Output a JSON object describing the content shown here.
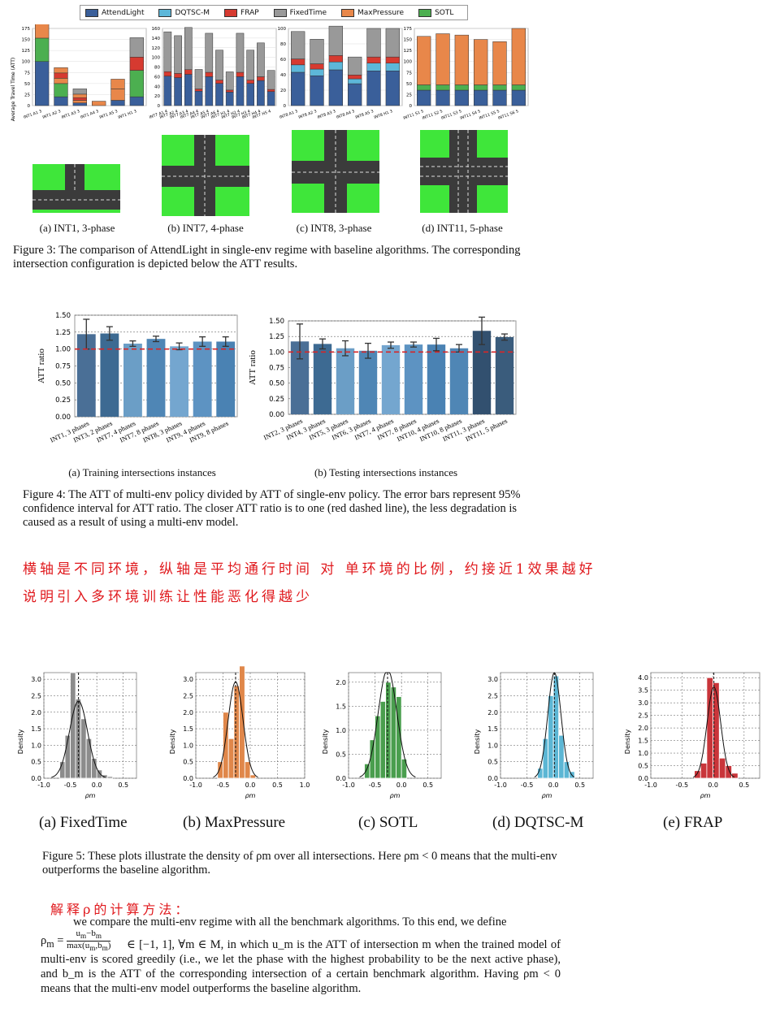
{
  "legend": [
    {
      "label": "AttendLight",
      "color": "#3a5f9a"
    },
    {
      "label": "DQTSC-M",
      "color": "#5db7d9"
    },
    {
      "label": "FRAP",
      "color": "#d63a30"
    },
    {
      "label": "FixedTime",
      "color": "#999999"
    },
    {
      "label": "MaxPressure",
      "color": "#e8874a"
    },
    {
      "label": "SOTL",
      "color": "#4caf50"
    }
  ],
  "fig3": {
    "ylabel": "Average Travel Time (ATT)",
    "subcaptions": [
      "(a) INT1, 3-phase",
      "(b) INT7, 4-phase",
      "(c) INT8, 3-phase",
      "(d) INT11, 5-phase"
    ],
    "caption": "Figure 3: The comparison of AttendLight in single-env regime with baseline algorithms. The corresponding intersection configuration is depicted below the ATT results."
  },
  "fig4": {
    "subcaptions": [
      "(a) Training intersections instances",
      "(b) Testing intersections instances"
    ],
    "caption": "Figure 4: The ATT of multi-env policy divided by ATT of single-env policy. The error bars represent 95% confidence interval for ATT ratio. The closer ATT ratio is to one (red dashed line), the less degradation is caused as a result of using a multi-env model."
  },
  "note1": "横轴是不同环境，纵轴是平均通行时间 对 单环境的比例，约接近1效果越好",
  "note2": "说明引入多环境训练让性能恶化得越少",
  "fig5": {
    "subcaptions": [
      "(a) FixedTime",
      "(b) MaxPressure",
      "(c) SOTL",
      "(d) DQTSC-M",
      "(e) FRAP"
    ],
    "ylabel": "Density",
    "xlabel": "ρm",
    "caption": "Figure 5: These plots illustrate the density of ρm over all intersections. Here ρm < 0 means that the multi-env outperforms the baseline algorithm."
  },
  "note3": "解释ρ的计算方法：",
  "paragraph": {
    "line1": "we compare the multi-env regime with all the benchmark algorithms. To this end, we define",
    "rest": "∈ [−1, 1], ∀m ∈ M, in which u_m is the ATT of intersection m when the trained model of multi-env is scored greedily (i.e., we let the phase with the highest probability to be the next active phase), and b_m is the ATT of the corresponding intersection of a certain benchmark algorithm. Having ρm < 0 means that the multi-env model outperforms the baseline algorithm."
  },
  "chart_data": [
    {
      "type": "bar",
      "id": "fig3a",
      "stacked": true,
      "ylim": [
        0,
        175
      ],
      "yticks": [
        0,
        25,
        50,
        75,
        100,
        125,
        150,
        175
      ],
      "categories": [
        "INT1 A1 3",
        "INT1 A2 3",
        "INT1 A3 3",
        "INT1 A4 3",
        "INT1 A5 3",
        "INT1 H1 3"
      ],
      "segments": [
        [
          100,
          20,
          6,
          0,
          12,
          20
        ],
        [
          53,
          30,
          0,
          0,
          0,
          60
        ],
        [
          110,
          12,
          6,
          10,
          26,
          0
        ],
        [
          60,
          12,
          6,
          0,
          0,
          30
        ],
        [
          118,
          12,
          8,
          0,
          22,
          0
        ],
        [
          67,
          0,
          12,
          0,
          0,
          44
        ]
      ],
      "colors": [
        [
          "#3a5f9a",
          "#4caf50",
          "#e8874a",
          "#d63a30",
          "#e8874a",
          "#999"
        ]
      ]
    },
    {
      "type": "bar",
      "id": "fig3b",
      "stacked": true,
      "ylim": [
        0,
        160
      ],
      "yticks": [
        0,
        20,
        40,
        60,
        80,
        100,
        120,
        140,
        160
      ],
      "categories": [
        "INT7 A1 4",
        "INT7 A2 4",
        "INT7 A3 4",
        "INT7 A4 4",
        "INT7 A5 4",
        "INT7 A6 4",
        "INT7 H1 4",
        "INT7 H2 4",
        "INT7 H3 4",
        "INT7 H4 4",
        "INT7 H5 4"
      ],
      "values": [
        153,
        145,
        162,
        75,
        150,
        115,
        70,
        150,
        115,
        130,
        73
      ]
    },
    {
      "type": "bar",
      "id": "fig3c",
      "stacked": true,
      "ylim": [
        0,
        100
      ],
      "yticks": [
        0,
        20,
        40,
        60,
        80,
        100
      ],
      "categories": [
        "INT8 A1 3",
        "INT8 A2 3",
        "INT8 A3 3",
        "INT8 A4 3",
        "INT8 A5 3",
        "INT8 H1 3"
      ],
      "values": [
        96,
        86,
        103,
        63,
        100,
        100
      ]
    },
    {
      "type": "bar",
      "id": "fig3d",
      "stacked": true,
      "ylim": [
        0,
        175
      ],
      "yticks": [
        0,
        25,
        50,
        75,
        100,
        125,
        150,
        175
      ],
      "categories": [
        "INT11 S1 5",
        "INT11 S2 5",
        "INT11 S3 5",
        "INT11 S4 5",
        "INT11 S5 5",
        "INT11 S6 5"
      ],
      "values": [
        157,
        163,
        160,
        150,
        145,
        175
      ]
    },
    {
      "type": "bar",
      "id": "fig4a",
      "ylabel": "ATT ratio",
      "ylim": [
        0,
        1.5
      ],
      "yticks": [
        0.0,
        0.25,
        0.5,
        0.75,
        1.0,
        1.25,
        1.5
      ],
      "categories": [
        "INT1, 3 phases",
        "INT3, 2 phases",
        "INT7, 4 phases",
        "INT7, 8 phases",
        "INT8, 3 phases",
        "INT9, 4 phases",
        "INT9, 8 phases"
      ],
      "values": [
        1.22,
        1.23,
        1.08,
        1.15,
        1.04,
        1.11,
        1.11
      ],
      "err": [
        0.22,
        0.1,
        0.04,
        0.04,
        0.05,
        0.07,
        0.07
      ]
    },
    {
      "type": "bar",
      "id": "fig4b",
      "ylabel": "ATT ratio",
      "ylim": [
        0,
        1.5
      ],
      "yticks": [
        0.0,
        0.25,
        0.5,
        0.75,
        1.0,
        1.25,
        1.5
      ],
      "categories": [
        "INT2, 3 phases",
        "INT4, 3 phases",
        "INT5, 3 phases",
        "INT6, 3 phases",
        "INT7, 4 phases",
        "INT7, 8 phases",
        "INT10, 4 phases",
        "INT10, 8 phases",
        "INT11, 3 phases",
        "INT11, 5 phases"
      ],
      "values": [
        1.17,
        1.13,
        1.06,
        1.02,
        1.11,
        1.12,
        1.12,
        1.06,
        1.34,
        1.24
      ],
      "err": [
        0.28,
        0.08,
        0.12,
        0.12,
        0.05,
        0.04,
        0.1,
        0.06,
        0.22,
        0.05
      ]
    },
    {
      "type": "bar",
      "id": "fig5a",
      "histogram": true,
      "xlim": [
        -1.0,
        0.75
      ],
      "ylim": [
        0,
        3.2
      ],
      "yticks": [
        0.0,
        0.5,
        1.0,
        1.5,
        2.0,
        2.5,
        3.0
      ],
      "xticks": [
        -1.0,
        -0.5,
        0.0,
        0.5
      ],
      "bins": [
        -0.7,
        -0.6,
        -0.5,
        -0.4,
        -0.3,
        -0.2,
        -0.1,
        0.0,
        0.1,
        0.2
      ],
      "values": [
        0.5,
        1.3,
        3.2,
        2.4,
        1.8,
        1.2,
        0.6,
        0.25,
        0.1,
        0.05
      ]
    },
    {
      "type": "bar",
      "id": "fig5b",
      "histogram": true,
      "xlim": [
        -1.0,
        1.0
      ],
      "ylim": [
        0,
        3.2
      ],
      "yticks": [
        0.0,
        0.5,
        1.0,
        1.5,
        2.0,
        2.5,
        3.0
      ],
      "xticks": [
        -1.0,
        -0.5,
        0.0,
        0.5,
        1.0
      ],
      "bins": [
        -0.6,
        -0.5,
        -0.4,
        -0.3,
        -0.2,
        -0.1,
        0.0
      ],
      "values": [
        0.5,
        2.0,
        1.2,
        2.8,
        3.4,
        0.5,
        0.1
      ]
    },
    {
      "type": "bar",
      "id": "fig5c",
      "histogram": true,
      "xlim": [
        -1.0,
        0.75
      ],
      "ylim": [
        0,
        2.2
      ],
      "yticks": [
        0.0,
        0.5,
        1.0,
        1.5,
        2.0
      ],
      "xticks": [
        -1.0,
        -0.5,
        0.0,
        0.5
      ],
      "bins": [
        -0.7,
        -0.6,
        -0.5,
        -0.4,
        -0.3,
        -0.2,
        -0.1,
        0.0
      ],
      "values": [
        0.3,
        0.8,
        1.3,
        1.6,
        2.0,
        1.9,
        1.7,
        0.4
      ]
    },
    {
      "type": "bar",
      "id": "fig5d",
      "histogram": true,
      "xlim": [
        -1.0,
        0.75
      ],
      "ylim": [
        0,
        3.2
      ],
      "yticks": [
        0.0,
        0.5,
        1.0,
        1.5,
        2.0,
        2.5,
        3.0
      ],
      "xticks": [
        -1.0,
        -0.5,
        0.0,
        0.5
      ],
      "bins": [
        -0.3,
        -0.2,
        -0.1,
        0.0,
        0.1,
        0.2,
        0.3
      ],
      "values": [
        0.3,
        1.2,
        2.5,
        3.1,
        1.3,
        0.5,
        0.2
      ]
    },
    {
      "type": "bar",
      "id": "fig5e",
      "histogram": true,
      "xlim": [
        -1.0,
        0.75
      ],
      "ylim": [
        0,
        4.2
      ],
      "yticks": [
        0.0,
        0.5,
        1.0,
        1.5,
        2.0,
        2.5,
        3.0,
        3.5,
        4.0
      ],
      "xticks": [
        -1.0,
        -0.5,
        0.0,
        0.5
      ],
      "bins": [
        -0.3,
        -0.2,
        -0.1,
        0.0,
        0.1,
        0.2,
        0.3
      ],
      "values": [
        0.3,
        0.6,
        4.0,
        3.8,
        0.8,
        0.5,
        0.2
      ]
    }
  ]
}
